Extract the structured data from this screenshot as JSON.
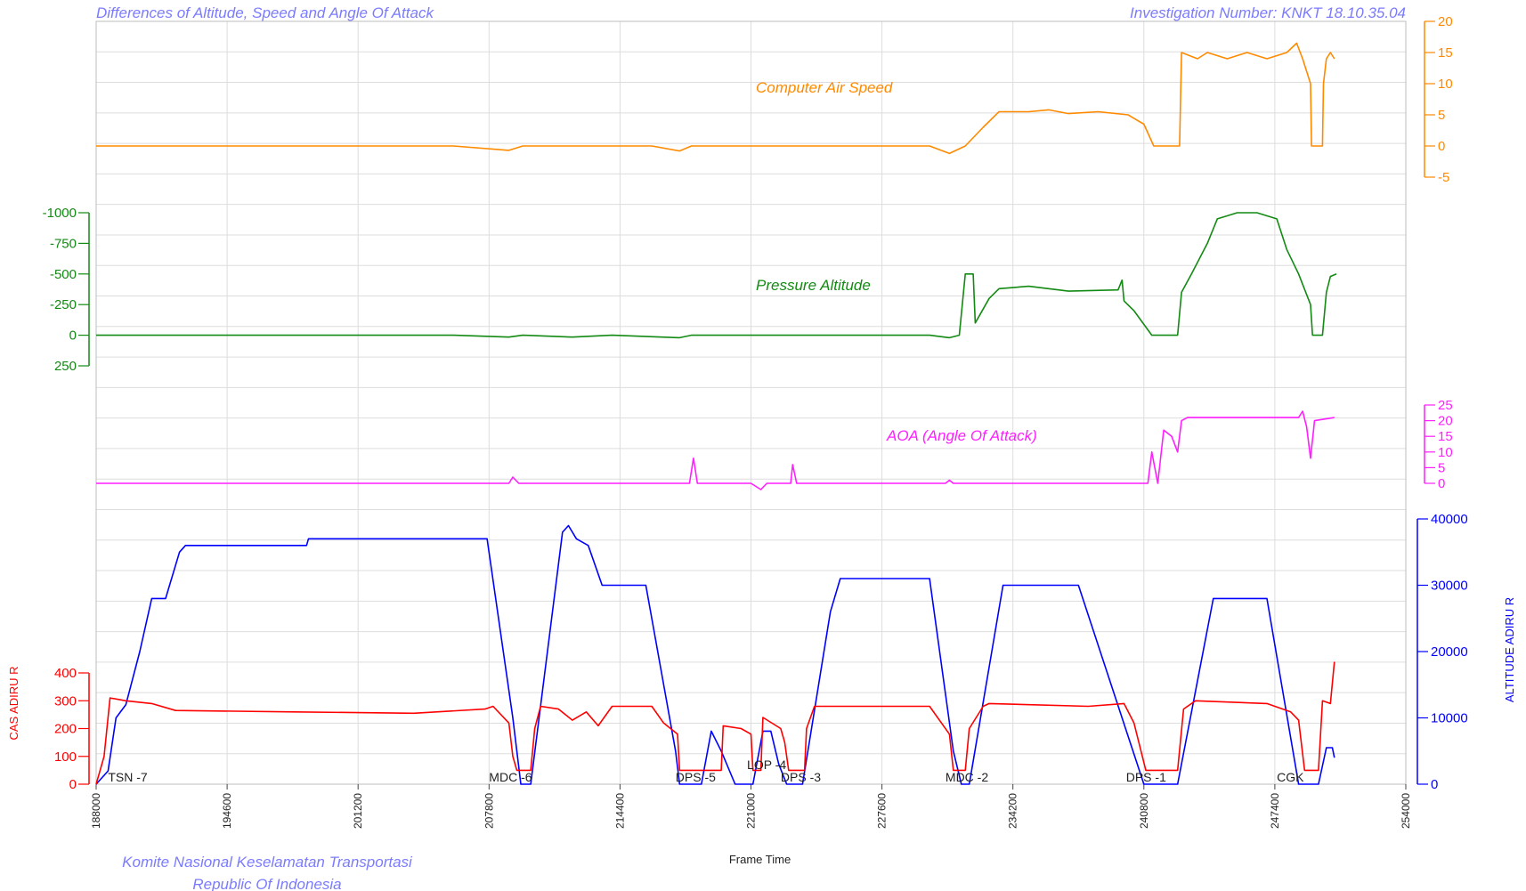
{
  "header": {
    "title": "Differences of Altitude, Speed and Angle Of Attack",
    "investigation": "Investigation Number: KNKT 18.10.35.04"
  },
  "footer": {
    "line1": "Komite Nasional Keselamatan Transportasi",
    "line2": "Republic Of Indonesia"
  },
  "colors": {
    "cas_diff": "#ff8a00",
    "alt_diff": "#138a13",
    "aoa_diff": "#ff1fff",
    "cas_adiru": "#ff0000",
    "alt_adiru": "#0000ff",
    "grid": "#dddddd",
    "header_text": "#7b7bff"
  },
  "chart_data": {
    "type": "line",
    "xlabel": "Frame Time",
    "xlim": [
      188000,
      254000
    ],
    "xticks": [
      188000,
      194600,
      201200,
      207800,
      214400,
      221000,
      227600,
      234200,
      240800,
      247400,
      254000
    ],
    "flights": [
      {
        "label": "TSN -7",
        "x": 188600
      },
      {
        "label": "MDC -6",
        "x": 207800
      },
      {
        "label": "DPS -5",
        "x": 217200
      },
      {
        "label": "LOP -4",
        "x": 220800
      },
      {
        "label": "DPS -3",
        "x": 222500
      },
      {
        "label": "MDC -2",
        "x": 230800
      },
      {
        "label": "DPS -1",
        "x": 239900
      },
      {
        "label": "CGK",
        "x": 247500
      }
    ],
    "series": [
      {
        "name": "Computer Air Speed",
        "axis_side": "right",
        "ylim": [
          -5,
          20
        ],
        "yticks": [
          -5,
          0,
          5,
          10,
          15,
          20
        ],
        "points": [
          [
            188000,
            0
          ],
          [
            197000,
            0
          ],
          [
            206000,
            0
          ],
          [
            208800,
            -0.7
          ],
          [
            209500,
            0
          ],
          [
            212000,
            0
          ],
          [
            216000,
            0
          ],
          [
            217400,
            -0.8
          ],
          [
            218000,
            0
          ],
          [
            224000,
            0
          ],
          [
            230000,
            0
          ],
          [
            231000,
            -1.2
          ],
          [
            231800,
            0
          ],
          [
            232700,
            3
          ],
          [
            233500,
            5.5
          ],
          [
            235000,
            5.5
          ],
          [
            236000,
            5.8
          ],
          [
            237000,
            5.2
          ],
          [
            238500,
            5.5
          ],
          [
            240000,
            5
          ],
          [
            240800,
            3.5
          ],
          [
            241300,
            0
          ],
          [
            242600,
            0
          ],
          [
            242700,
            15
          ],
          [
            243500,
            14
          ],
          [
            244000,
            15
          ],
          [
            245000,
            14
          ],
          [
            246000,
            15
          ],
          [
            247000,
            14
          ],
          [
            248000,
            15
          ],
          [
            248500,
            16.5
          ],
          [
            248800,
            14
          ],
          [
            249200,
            10
          ],
          [
            249250,
            0
          ],
          [
            249800,
            0
          ],
          [
            249850,
            10
          ],
          [
            250000,
            14
          ],
          [
            250200,
            15
          ],
          [
            250400,
            14
          ]
        ]
      },
      {
        "name": "Pressure Altitude",
        "axis_side": "left",
        "ylim": [
          250,
          -1000
        ],
        "yticks": [
          -1000,
          -750,
          -500,
          -250,
          0,
          250
        ],
        "points": [
          [
            188000,
            0
          ],
          [
            200000,
            0
          ],
          [
            206000,
            0
          ],
          [
            208800,
            15
          ],
          [
            209500,
            0
          ],
          [
            212000,
            15
          ],
          [
            214000,
            0
          ],
          [
            217400,
            20
          ],
          [
            218000,
            0
          ],
          [
            230000,
            0
          ],
          [
            231000,
            20
          ],
          [
            231500,
            0
          ],
          [
            231800,
            -500
          ],
          [
            232200,
            -500
          ],
          [
            232300,
            -100
          ],
          [
            233000,
            -300
          ],
          [
            233500,
            -380
          ],
          [
            235000,
            -400
          ],
          [
            236000,
            -380
          ],
          [
            237000,
            -360
          ],
          [
            239500,
            -370
          ],
          [
            239700,
            -450
          ],
          [
            239800,
            -280
          ],
          [
            240300,
            -200
          ],
          [
            241200,
            0
          ],
          [
            242500,
            0
          ],
          [
            242700,
            -350
          ],
          [
            243200,
            -500
          ],
          [
            244000,
            -750
          ],
          [
            244500,
            -950
          ],
          [
            245500,
            -1000
          ],
          [
            246500,
            -1000
          ],
          [
            247500,
            -950
          ],
          [
            248000,
            -700
          ],
          [
            248600,
            -500
          ],
          [
            249200,
            -250
          ],
          [
            249300,
            0
          ],
          [
            249800,
            0
          ],
          [
            250000,
            -350
          ],
          [
            250200,
            -480
          ],
          [
            250500,
            -500
          ]
        ]
      },
      {
        "name": "AOA (Angle Of Attack)",
        "axis_side": "right",
        "ylim": [
          0,
          25
        ],
        "yticks": [
          0,
          5,
          10,
          15,
          20,
          25
        ],
        "points": [
          [
            188000,
            0
          ],
          [
            208800,
            0
          ],
          [
            209000,
            2
          ],
          [
            209300,
            0
          ],
          [
            217900,
            0
          ],
          [
            218100,
            8
          ],
          [
            218300,
            0
          ],
          [
            221000,
            0
          ],
          [
            221500,
            -2
          ],
          [
            221800,
            0
          ],
          [
            223000,
            0
          ],
          [
            223100,
            6
          ],
          [
            223300,
            0
          ],
          [
            230800,
            0
          ],
          [
            231000,
            1
          ],
          [
            231200,
            0
          ],
          [
            241000,
            0
          ],
          [
            241200,
            10
          ],
          [
            241500,
            0
          ],
          [
            241800,
            17
          ],
          [
            242200,
            15
          ],
          [
            242500,
            10
          ],
          [
            242700,
            20
          ],
          [
            243000,
            21
          ],
          [
            248600,
            21
          ],
          [
            248800,
            23
          ],
          [
            249000,
            18
          ],
          [
            249200,
            8
          ],
          [
            249400,
            20
          ],
          [
            250400,
            21
          ]
        ]
      },
      {
        "name": "ALTITUDE ADIRU R",
        "axis_side": "right",
        "ylim": [
          0,
          40000
        ],
        "yticks": [
          0,
          10000,
          20000,
          30000,
          40000
        ],
        "points": [
          [
            188000,
            0
          ],
          [
            188600,
            2000
          ],
          [
            189000,
            10000
          ],
          [
            189500,
            12000
          ],
          [
            190200,
            20000
          ],
          [
            190800,
            28000
          ],
          [
            191500,
            28000
          ],
          [
            192200,
            35000
          ],
          [
            192500,
            36000
          ],
          [
            198600,
            36000
          ],
          [
            198700,
            37000
          ],
          [
            207700,
            37000
          ],
          [
            209000,
            10000
          ],
          [
            209400,
            0
          ],
          [
            209900,
            0
          ],
          [
            211500,
            38000
          ],
          [
            211800,
            39000
          ],
          [
            212200,
            37000
          ],
          [
            212800,
            36000
          ],
          [
            213500,
            30000
          ],
          [
            215700,
            30000
          ],
          [
            217200,
            5000
          ],
          [
            217400,
            0
          ],
          [
            218500,
            0
          ],
          [
            219000,
            8000
          ],
          [
            219500,
            5000
          ],
          [
            220200,
            0
          ],
          [
            221100,
            0
          ],
          [
            221600,
            8000
          ],
          [
            222000,
            8000
          ],
          [
            222400,
            3000
          ],
          [
            222800,
            0
          ],
          [
            223600,
            0
          ],
          [
            225000,
            26000
          ],
          [
            225500,
            31000
          ],
          [
            230000,
            31000
          ],
          [
            231200,
            5000
          ],
          [
            231600,
            0
          ],
          [
            232000,
            0
          ],
          [
            233700,
            30000
          ],
          [
            237500,
            30000
          ],
          [
            240800,
            0
          ],
          [
            242500,
            0
          ],
          [
            244300,
            28000
          ],
          [
            247000,
            28000
          ],
          [
            248600,
            0
          ],
          [
            249600,
            0
          ],
          [
            250000,
            5500
          ],
          [
            250300,
            5500
          ],
          [
            250400,
            4000
          ]
        ]
      },
      {
        "name": "CAS ADIRU R",
        "axis_side": "left",
        "ylim": [
          0,
          400
        ],
        "yticks": [
          0,
          100,
          200,
          300,
          400
        ],
        "points": [
          [
            188000,
            0
          ],
          [
            188400,
            100
          ],
          [
            188700,
            310
          ],
          [
            189500,
            300
          ],
          [
            190800,
            290
          ],
          [
            192000,
            265
          ],
          [
            198000,
            260
          ],
          [
            204000,
            255
          ],
          [
            207600,
            270
          ],
          [
            208000,
            280
          ],
          [
            208800,
            220
          ],
          [
            209000,
            100
          ],
          [
            209200,
            50
          ],
          [
            209900,
            50
          ],
          [
            210100,
            200
          ],
          [
            210400,
            280
          ],
          [
            211300,
            270
          ],
          [
            212000,
            230
          ],
          [
            212700,
            260
          ],
          [
            213300,
            210
          ],
          [
            214000,
            280
          ],
          [
            216000,
            280
          ],
          [
            216600,
            220
          ],
          [
            217300,
            180
          ],
          [
            217400,
            50
          ],
          [
            219500,
            50
          ],
          [
            219600,
            210
          ],
          [
            220500,
            200
          ],
          [
            221000,
            180
          ],
          [
            221100,
            50
          ],
          [
            221500,
            50
          ],
          [
            221600,
            240
          ],
          [
            222500,
            200
          ],
          [
            222700,
            150
          ],
          [
            222900,
            50
          ],
          [
            223700,
            50
          ],
          [
            223800,
            200
          ],
          [
            224200,
            280
          ],
          [
            225000,
            280
          ],
          [
            230000,
            280
          ],
          [
            231000,
            180
          ],
          [
            231200,
            50
          ],
          [
            231800,
            50
          ],
          [
            232000,
            200
          ],
          [
            232700,
            280
          ],
          [
            233000,
            290
          ],
          [
            238000,
            280
          ],
          [
            239800,
            290
          ],
          [
            240300,
            220
          ],
          [
            240900,
            50
          ],
          [
            242500,
            50
          ],
          [
            242800,
            270
          ],
          [
            243400,
            300
          ],
          [
            247000,
            290
          ],
          [
            248200,
            260
          ],
          [
            248600,
            230
          ],
          [
            248900,
            50
          ],
          [
            249600,
            50
          ],
          [
            249800,
            300
          ],
          [
            250200,
            290
          ],
          [
            250400,
            440
          ]
        ]
      }
    ]
  }
}
